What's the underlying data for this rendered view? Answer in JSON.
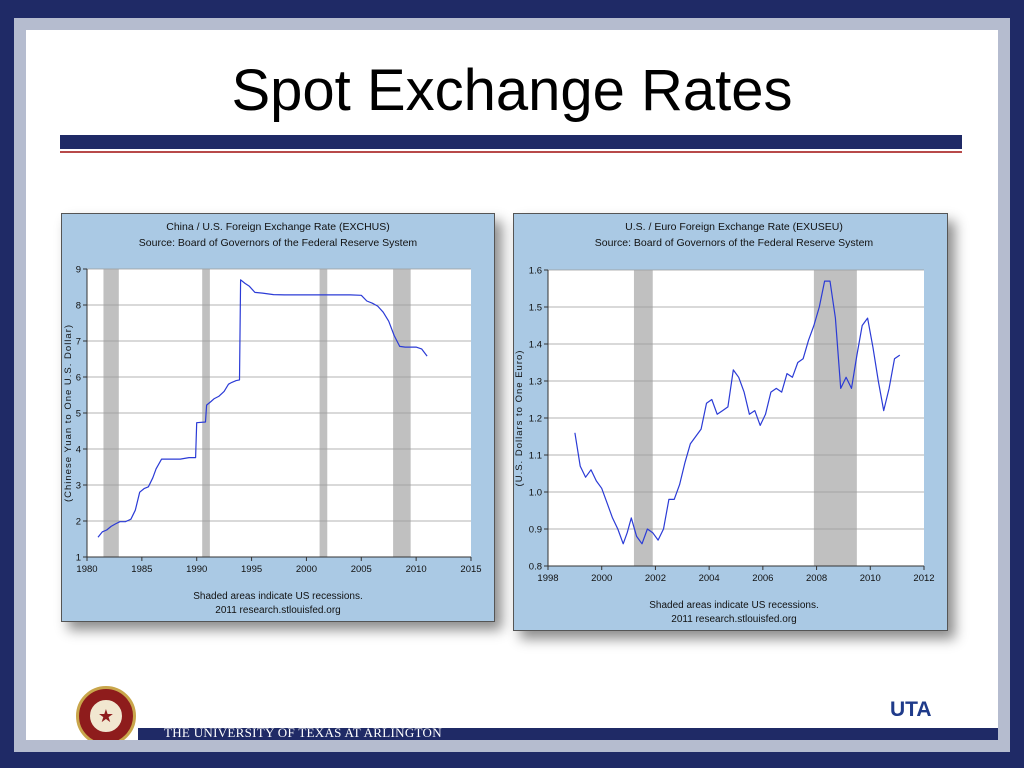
{
  "slide": {
    "title": "Spot Exchange Rates",
    "footer_text": "THE UNIVERSITY OF TEXAS AT ARLINGTON",
    "logo_text": "UTA",
    "seal_text": "THE UNIVERSITY OF TEXAS AT ARLINGTON",
    "colors": {
      "navy": "#1f2a66",
      "chart_bg": "#aac9e4",
      "series": "#2b3bd6",
      "recession": "#c0c0c0"
    }
  },
  "chart_data": [
    {
      "type": "line",
      "title": "China / U.S. Foreign Exchange Rate (EXCHUS)",
      "subtitle": "Source: Board of Governors of the Federal Reserve System",
      "ylabel": "(Chinese Yuan to One U.S. Dollar)",
      "xlabel": "",
      "xlim": [
        1980,
        2015
      ],
      "ylim": [
        1,
        9
      ],
      "xticks": [
        "1980",
        "1985",
        "1990",
        "1995",
        "2000",
        "2005",
        "2010",
        "2015"
      ],
      "yticks": [
        "1",
        "2",
        "3",
        "4",
        "5",
        "6",
        "7",
        "8",
        "9"
      ],
      "grid": true,
      "recessions": [
        [
          1981.5,
          1982.9
        ],
        [
          1990.5,
          1991.2
        ],
        [
          2001.2,
          2001.9
        ],
        [
          2007.9,
          2009.5
        ]
      ],
      "footnote1": "Shaded areas indicate US recessions.",
      "footnote2": "2011 research.stlouisfed.org",
      "series": [
        {
          "x": [
            1981.0,
            1981.4,
            1981.8,
            1982.2,
            1982.6,
            1983.0,
            1983.5,
            1984.0,
            1984.4,
            1984.8,
            1985.2,
            1985.6,
            1986.0,
            1986.3,
            1986.8,
            1987.5,
            1988.5,
            1989.3,
            1989.9,
            1990.0,
            1990.8,
            1990.9,
            1991.3,
            1991.6,
            1992.0,
            1992.5,
            1992.9,
            1993.2,
            1993.6,
            1993.9,
            1994.0,
            1994.4,
            1994.8,
            1995.3,
            1996.0,
            1997.0,
            1998.0,
            1999.0,
            2000.0,
            2001.0,
            2002.0,
            2003.0,
            2004.0,
            2005.0,
            2005.5,
            2006.0,
            2006.5,
            2007.0,
            2007.5,
            2008.0,
            2008.5,
            2009.0,
            2009.5,
            2010.0,
            2010.5,
            2011.0
          ],
          "y": [
            1.55,
            1.7,
            1.75,
            1.85,
            1.92,
            1.98,
            1.98,
            2.05,
            2.3,
            2.8,
            2.9,
            2.95,
            3.2,
            3.45,
            3.72,
            3.72,
            3.72,
            3.76,
            3.76,
            4.73,
            4.75,
            5.22,
            5.32,
            5.4,
            5.46,
            5.6,
            5.8,
            5.85,
            5.9,
            5.92,
            8.7,
            8.6,
            8.52,
            8.35,
            8.33,
            8.29,
            8.28,
            8.28,
            8.28,
            8.28,
            8.28,
            8.28,
            8.28,
            8.27,
            8.11,
            8.05,
            7.97,
            7.8,
            7.55,
            7.15,
            6.85,
            6.83,
            6.83,
            6.83,
            6.78,
            6.58
          ]
        }
      ]
    },
    {
      "type": "line",
      "title": "U.S. / Euro Foreign Exchange Rate (EXUSEU)",
      "subtitle": "Source: Board of Governors of the Federal Reserve System",
      "ylabel": "(U.S. Dollars to One Euro)",
      "xlabel": "",
      "xlim": [
        1998,
        2012
      ],
      "ylim": [
        0.8,
        1.6
      ],
      "xticks": [
        "1998",
        "2000",
        "2002",
        "2004",
        "2006",
        "2008",
        "2010",
        "2012"
      ],
      "yticks": [
        "0.8",
        "0.9",
        "1.0",
        "1.1",
        "1.2",
        "1.3",
        "1.4",
        "1.5",
        "1.6"
      ],
      "grid": true,
      "recessions": [
        [
          2001.2,
          2001.9
        ],
        [
          2007.9,
          2009.5
        ]
      ],
      "footnote1": "Shaded areas indicate US recessions.",
      "footnote2": "2011 research.stlouisfed.org",
      "series": [
        {
          "x": [
            1999.0,
            1999.2,
            1999.4,
            1999.6,
            1999.8,
            2000.0,
            2000.2,
            2000.4,
            2000.6,
            2000.8,
            2000.95,
            2001.1,
            2001.3,
            2001.5,
            2001.7,
            2001.9,
            2002.1,
            2002.3,
            2002.5,
            2002.7,
            2002.9,
            2003.1,
            2003.3,
            2003.5,
            2003.7,
            2003.9,
            2004.1,
            2004.3,
            2004.5,
            2004.7,
            2004.9,
            2005.1,
            2005.3,
            2005.5,
            2005.7,
            2005.9,
            2006.1,
            2006.3,
            2006.5,
            2006.7,
            2006.9,
            2007.1,
            2007.3,
            2007.5,
            2007.7,
            2007.9,
            2008.1,
            2008.3,
            2008.5,
            2008.7,
            2008.9,
            2009.1,
            2009.3,
            2009.5,
            2009.7,
            2009.9,
            2010.1,
            2010.3,
            2010.5,
            2010.7,
            2010.9,
            2011.1
          ],
          "y": [
            1.16,
            1.07,
            1.04,
            1.06,
            1.03,
            1.01,
            0.97,
            0.93,
            0.9,
            0.86,
            0.89,
            0.93,
            0.88,
            0.86,
            0.9,
            0.89,
            0.87,
            0.9,
            0.98,
            0.98,
            1.02,
            1.08,
            1.13,
            1.15,
            1.17,
            1.24,
            1.25,
            1.21,
            1.22,
            1.23,
            1.33,
            1.31,
            1.27,
            1.21,
            1.22,
            1.18,
            1.21,
            1.27,
            1.28,
            1.27,
            1.32,
            1.31,
            1.35,
            1.36,
            1.41,
            1.45,
            1.5,
            1.57,
            1.57,
            1.47,
            1.28,
            1.31,
            1.28,
            1.37,
            1.45,
            1.47,
            1.39,
            1.3,
            1.22,
            1.28,
            1.36,
            1.37
          ]
        }
      ]
    }
  ]
}
